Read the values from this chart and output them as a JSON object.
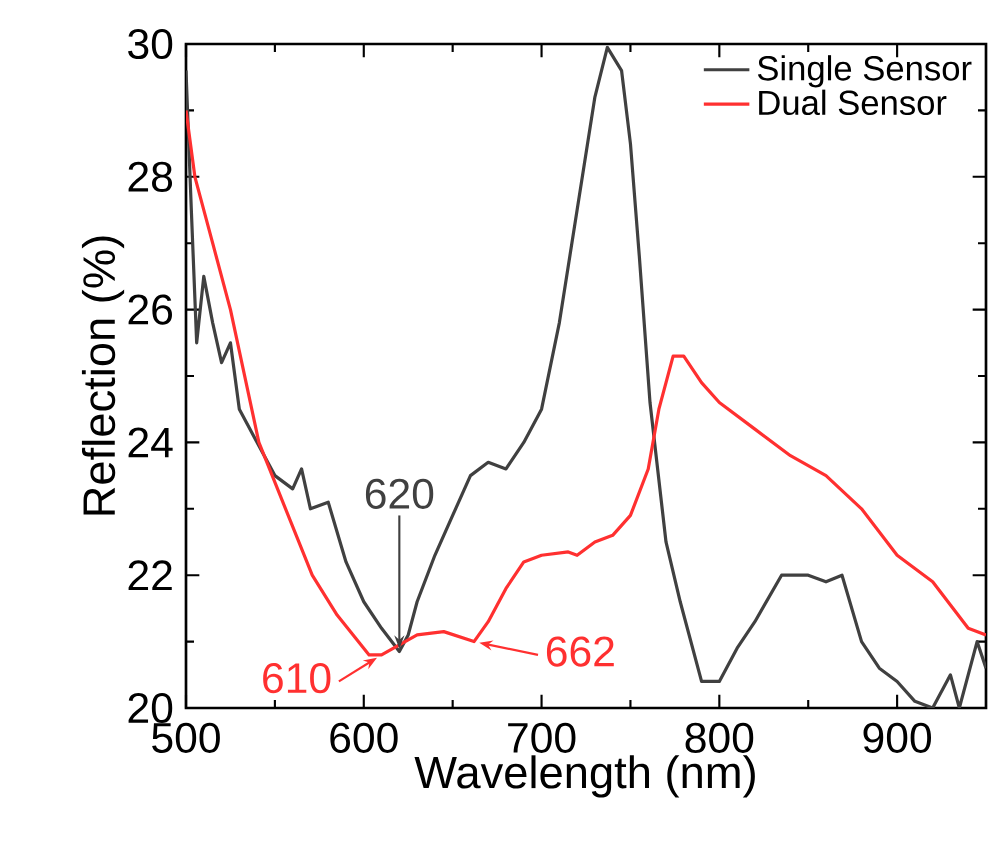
{
  "chart_data": {
    "type": "line",
    "xlabel": "Wavelength (nm)",
    "ylabel": "Reflection (%)",
    "xlim": [
      500,
      950
    ],
    "ylim": [
      20,
      30
    ],
    "xticks": [
      500,
      600,
      700,
      800,
      900
    ],
    "yticks": [
      20,
      22,
      24,
      26,
      28,
      30
    ],
    "legend": "top right",
    "grid": false,
    "marker": "none",
    "line_style": "solid",
    "series": [
      {
        "name": "Single Sensor",
        "color": "#404040",
        "x": [
          500,
          503,
          506,
          510,
          515,
          520,
          525,
          530,
          540,
          550,
          560,
          565,
          570,
          580,
          590,
          600,
          610,
          620,
          625,
          630,
          640,
          650,
          660,
          670,
          680,
          690,
          700,
          710,
          720,
          730,
          737,
          745,
          750,
          755,
          761,
          770,
          778,
          790,
          800,
          810,
          820,
          835,
          850,
          860,
          869,
          880,
          890,
          900,
          910,
          920,
          930,
          935,
          945,
          950
        ],
        "values": [
          29.6,
          27.5,
          25.5,
          26.5,
          25.8,
          25.2,
          25.5,
          24.5,
          24.0,
          23.5,
          23.3,
          23.6,
          23.0,
          23.1,
          22.2,
          21.6,
          21.2,
          20.85,
          21.1,
          21.6,
          22.3,
          22.9,
          23.5,
          23.7,
          23.6,
          24.0,
          24.5,
          25.8,
          27.5,
          29.2,
          29.95,
          29.6,
          28.5,
          26.8,
          24.6,
          22.5,
          21.6,
          20.4,
          20.4,
          20.9,
          21.3,
          22.0,
          22.0,
          21.9,
          22.0,
          21.0,
          20.6,
          20.4,
          20.1,
          20.0,
          20.5,
          20.0,
          21.0,
          20.6
        ]
      },
      {
        "name": "Dual Sensor",
        "color": "#ff3030",
        "x": [
          500,
          505,
          515,
          525,
          541,
          556,
          571,
          585,
          603,
          610,
          620,
          630,
          645,
          662,
          670,
          680,
          690,
          700,
          715,
          720,
          730,
          740,
          750,
          760,
          766,
          774,
          780,
          790,
          800,
          820,
          840,
          860,
          880,
          900,
          920,
          940,
          950
        ],
        "values": [
          29.0,
          28.0,
          27.0,
          26.0,
          24.0,
          23.0,
          22.0,
          21.4,
          20.8,
          20.8,
          20.95,
          21.1,
          21.15,
          21.0,
          21.3,
          21.8,
          22.2,
          22.3,
          22.35,
          22.3,
          22.5,
          22.6,
          22.9,
          23.6,
          24.5,
          25.3,
          25.3,
          24.9,
          24.6,
          24.2,
          23.8,
          23.5,
          23.0,
          22.3,
          21.9,
          21.2,
          21.1
        ]
      }
    ],
    "annotations": [
      {
        "text": "620",
        "x": 620,
        "y": 20.85
      },
      {
        "text": "610",
        "x": 610,
        "y": 20.8
      },
      {
        "text": "662",
        "x": 662,
        "y": 21.0
      }
    ]
  }
}
